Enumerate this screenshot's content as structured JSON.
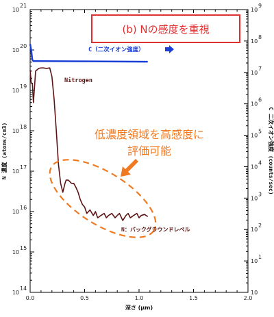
{
  "chart_data": {
    "type": "line",
    "panel_label": "(b)  Nの感度を重視",
    "xlabel": "深さ (μm)",
    "ylabel_left": "N 濃度 (atoms/cm3)",
    "ylabel_right": "C 二次イオン強度 (counts/sec)",
    "xlim": [
      0,
      2
    ],
    "ylim_left": [
      100000000000000.0,
      1e+21
    ],
    "ylim_right": [
      1,
      1000000000.0
    ],
    "yscale": "log",
    "x_ticks": [
      "0.0",
      "0.5",
      "1.0",
      "1.5",
      "2.0"
    ],
    "left_ticks": [
      {
        "base": "10",
        "exp": "14"
      },
      {
        "base": "10",
        "exp": "15"
      },
      {
        "base": "10",
        "exp": "16"
      },
      {
        "base": "10",
        "exp": "17"
      },
      {
        "base": "10",
        "exp": "18"
      },
      {
        "base": "10",
        "exp": "19"
      },
      {
        "base": "10",
        "exp": "20"
      },
      {
        "base": "10",
        "exp": "21"
      }
    ],
    "right_ticks": [
      {
        "base": "10",
        "exp": ""
      },
      {
        "base": "10",
        "exp": "1"
      },
      {
        "base": "10",
        "exp": "2"
      },
      {
        "base": "10",
        "exp": "3"
      },
      {
        "base": "10",
        "exp": "4"
      },
      {
        "base": "10",
        "exp": "5"
      },
      {
        "base": "10",
        "exp": "6"
      },
      {
        "base": "10",
        "exp": "7"
      },
      {
        "base": "10",
        "exp": "8"
      },
      {
        "base": "10",
        "exp": "9"
      }
    ],
    "series": [
      {
        "name": "Nitrogen",
        "axis": "left",
        "color": "#5c1414",
        "x": [
          0.0,
          0.01,
          0.02,
          0.03,
          0.05,
          0.08,
          0.1,
          0.12,
          0.15,
          0.18,
          0.2,
          0.22,
          0.24,
          0.26,
          0.28,
          0.3,
          0.32,
          0.33,
          0.35,
          0.38,
          0.4,
          0.42,
          0.44,
          0.46,
          0.48,
          0.5,
          0.52,
          0.55,
          0.58,
          0.6,
          0.62,
          0.65,
          0.68,
          0.7,
          0.72,
          0.75,
          0.78,
          0.8,
          0.82,
          0.85,
          0.88,
          0.9,
          0.92,
          0.95,
          0.98,
          1.0,
          1.02,
          1.05,
          1.08
        ],
        "values": [
          3.2e+19,
          1.5e+19,
          1.5e+19,
          5e+18,
          3e+19,
          3.5e+19,
          3.6e+19,
          3.6e+19,
          3.5e+19,
          3.6e+19,
          2.2e+19,
          6e+18,
          1e+18,
          1.5e+17,
          5e+16,
          3e+16,
          5e+16,
          6e+16,
          6e+16,
          5e+16,
          5e+16,
          4e+16,
          3e+16,
          2e+16,
          1.5e+16,
          1.3e+16,
          9000000000000000.0,
          1.1e+16,
          8000000000000000.0,
          1e+16,
          7000000000000000.0,
          8000000000000000.0,
          9000000000000000.0,
          7000000000000000.0,
          8000000000000000.0,
          9000000000000000.0,
          7000000000000000.0,
          8000000000000000.0,
          9000000000000000.0,
          6000000000000000.0,
          8000000000000000.0,
          9000000000000000.0,
          7000000000000000.0,
          8000000000000000.0,
          9000000000000000.0,
          7000000000000000.0,
          8000000000000000.0,
          8500000000000000.0,
          7500000000000000.0
        ]
      },
      {
        "name": "C (二次イオン強度)",
        "axis": "right",
        "color": "#1a3fd6",
        "x": [
          0.0,
          0.01,
          0.02,
          0.03,
          0.05,
          1.08
        ],
        "values": [
          80000000.0,
          50000000.0,
          25000000.0,
          23000000.0,
          23000000.0,
          22000000.0
        ]
      }
    ],
    "annotations": {
      "nitrogen_label": "Nitrogen",
      "c_label": "C（二次イオン強度）",
      "sensitivity_note_line1": "低濃度領域を高感度に",
      "sensitivity_note_line2": "評価可能",
      "background_label": "N：バックグラウンドレベル"
    }
  },
  "colors": {
    "panel_border": "#e23030",
    "panel_text": "#e23030",
    "annotation_orange": "#f07a22",
    "nitrogen": "#5c1414",
    "carbon": "#1a3fd6"
  }
}
